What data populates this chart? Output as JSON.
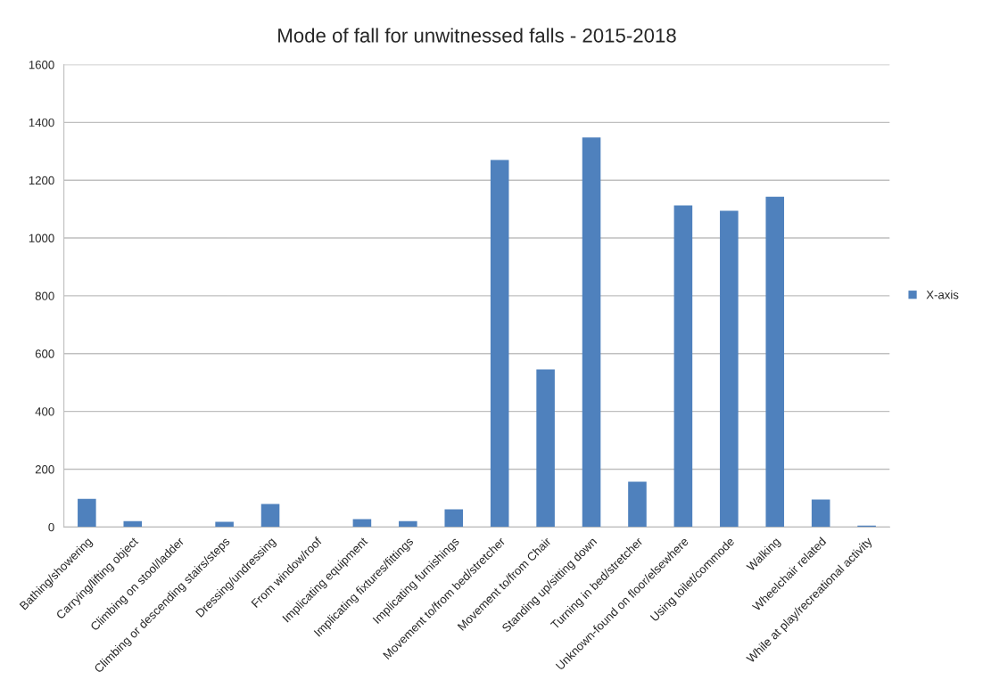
{
  "chart_data": {
    "type": "bar",
    "title": "Mode of fall for unwitnessed falls - 2015-2018",
    "categories": [
      "Bathing/showering",
      "Carrying/lifting object",
      "Climbing on stool/ladder",
      "Climbing or descending stairs/steps",
      "Dressing/undressing",
      "From window/roof",
      "Implicating equipment",
      "Implicating fixtures/fittings",
      "Implicating furnishings",
      "Movement to/from bed/stretcher",
      "Movement to/from Chair",
      "Standing up/sitting down",
      "Turning in bed/stretcher",
      "Unknown-found on floor/elsewhere",
      "Using toilet/commode",
      "Walking",
      "Wheelchair related",
      "While at play/recreational activity"
    ],
    "series": [
      {
        "name": "X-axis",
        "color": "#4f81bd",
        "values": [
          97,
          20,
          0,
          18,
          80,
          0,
          27,
          20,
          61,
          1270,
          545,
          1348,
          157,
          1113,
          1094,
          1143,
          95,
          5
        ]
      }
    ],
    "ylim": [
      0,
      1600
    ],
    "yticks": [
      0,
      200,
      400,
      600,
      800,
      1000,
      1200,
      1400,
      1600
    ],
    "grid": "y",
    "legend": "right"
  }
}
